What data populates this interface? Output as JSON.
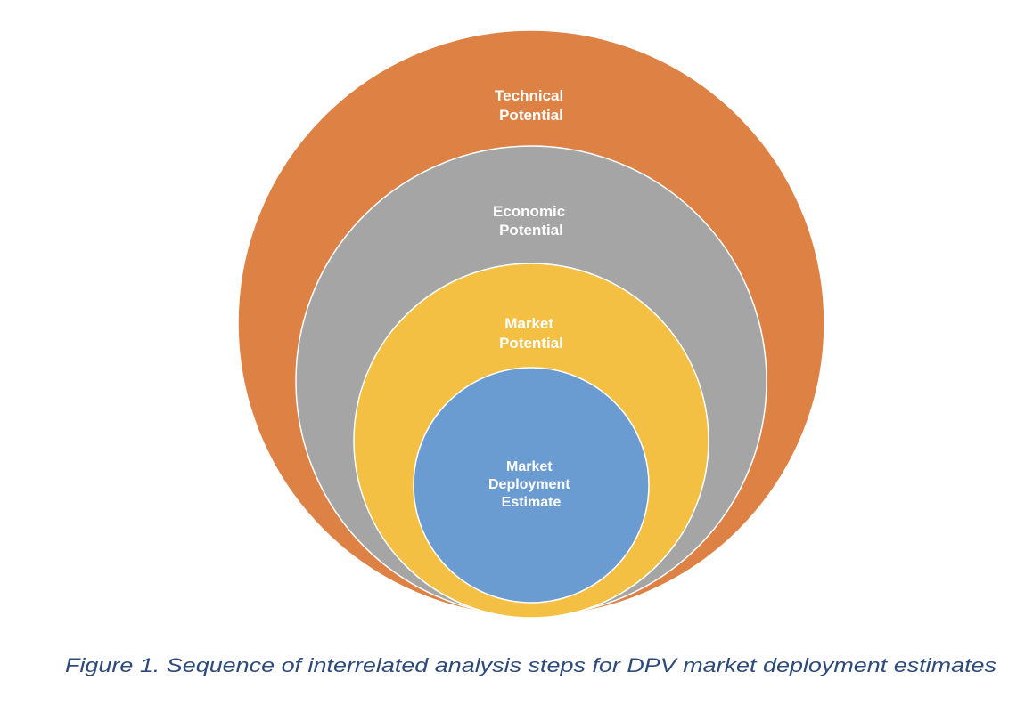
{
  "diagram": {
    "type": "nested-circles",
    "circles": [
      {
        "lines": [
          "Technical",
          "Potential"
        ],
        "color": "#de8144"
      },
      {
        "lines": [
          "Economic",
          "Potential"
        ],
        "color": "#a5a5a5"
      },
      {
        "lines": [
          "Market",
          "Potential"
        ],
        "color": "#f4c043"
      },
      {
        "lines": [
          "Market",
          "Deployment",
          "Estimate"
        ],
        "color": "#6a9bd1"
      }
    ],
    "stroke_color": "#ffffff"
  },
  "caption": {
    "text": "Figure 1. Sequence of interrelated analysis steps for DPV market deployment estimates",
    "color": "#2d4a7c"
  }
}
